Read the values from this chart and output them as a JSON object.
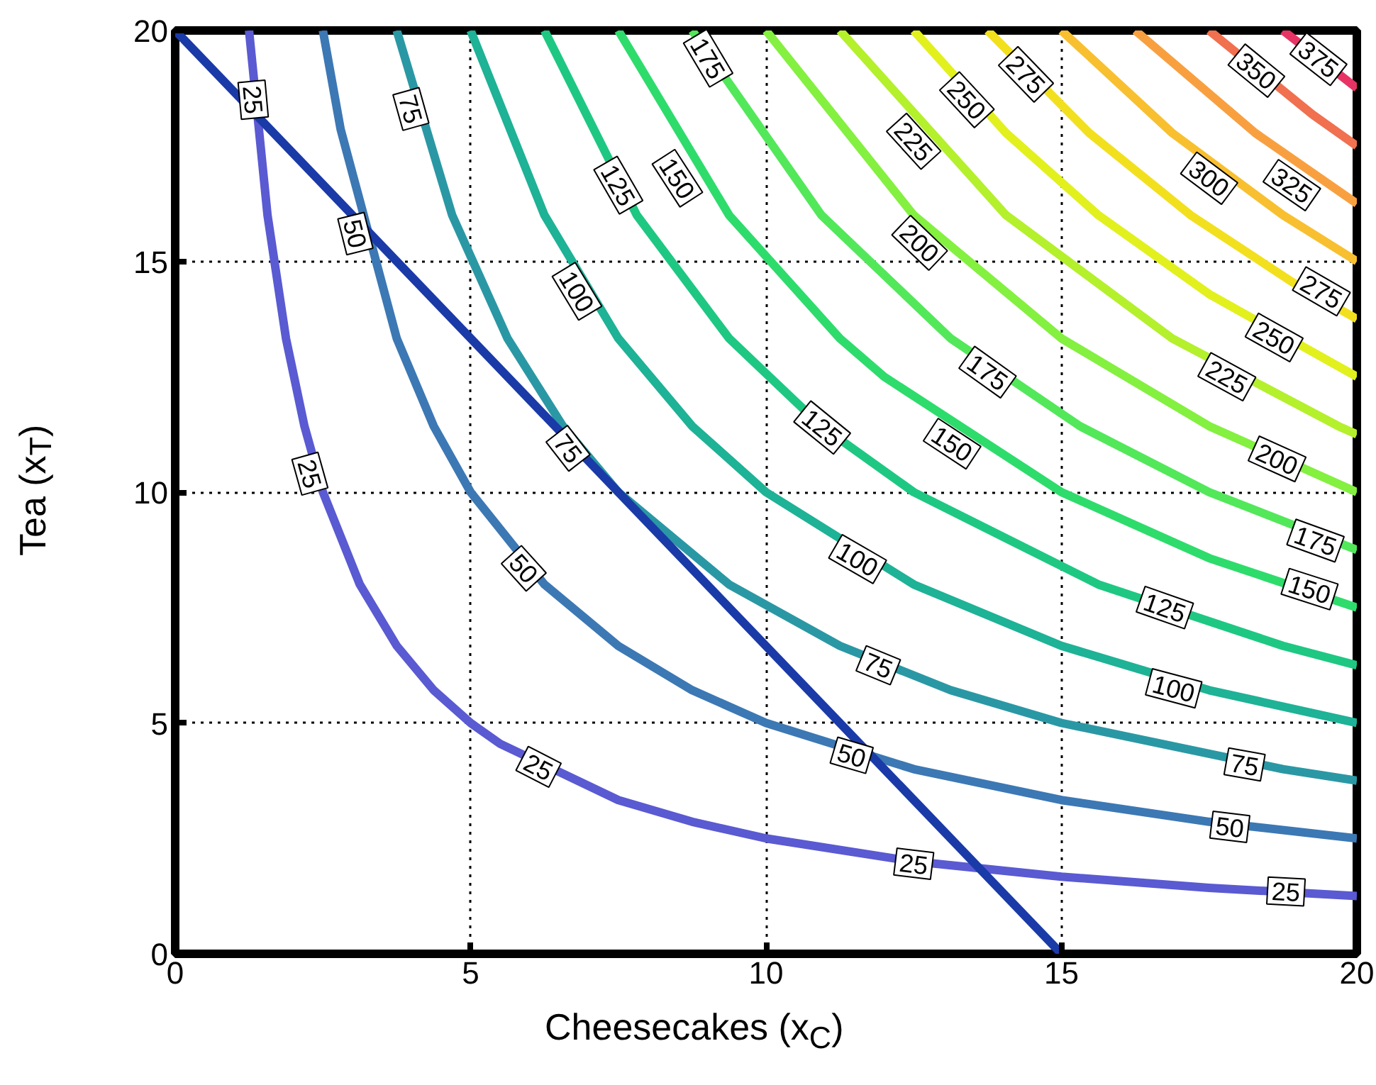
{
  "chart_data": {
    "type": "line",
    "xlabel": "Cheesecakes (x$_{C}$)",
    "ylabel": "Tea (x$_{T}$)",
    "xlim": [
      0,
      20
    ],
    "ylim": [
      0,
      20
    ],
    "xticks": [
      0,
      5,
      10,
      15,
      20
    ],
    "yticks": [
      0,
      5,
      10,
      15,
      20
    ],
    "grid": true,
    "series": [
      {
        "color": "#5a5ad2",
        "x": [
          1.25,
          1.5625,
          1.875,
          2.1875,
          2.5,
          3.125,
          3.75,
          4.375,
          5,
          5.5,
          7.5,
          8.75,
          10,
          12.5,
          15,
          17.5,
          20
        ],
        "values": [
          20,
          16,
          13.33,
          11.43,
          10,
          8,
          6.67,
          5.71,
          5,
          4.55,
          3.33,
          2.86,
          2.5,
          2,
          1.67,
          1.43,
          1.25
        ]
      },
      {
        "color": "#3c78b4",
        "x": [
          2.5,
          2.8,
          3.75,
          4.375,
          5,
          6.25,
          7.5,
          8.75,
          10,
          12.5,
          15,
          17.5,
          20
        ],
        "values": [
          20,
          17.86,
          13.33,
          11.43,
          10,
          8,
          6.67,
          5.71,
          5,
          4,
          3.33,
          2.86,
          2.5
        ]
      },
      {
        "color": "#2a98a4",
        "x": [
          3.75,
          4.6875,
          5.625,
          6.5625,
          7.5,
          9.375,
          11.25,
          13.125,
          15,
          18.75,
          20
        ],
        "values": [
          20,
          16,
          13.33,
          11.43,
          10,
          8,
          6.67,
          5.71,
          5,
          4,
          3.75
        ]
      },
      {
        "color": "#1eb296",
        "x": [
          5,
          6.25,
          7.5,
          8.75,
          10,
          12.5,
          15,
          17.5,
          20
        ],
        "values": [
          20,
          16,
          13.33,
          11.43,
          10,
          8,
          6.67,
          5.71,
          5
        ]
      },
      {
        "color": "#1ec882",
        "x": [
          6.25,
          7.8125,
          9.375,
          10.9375,
          12.5,
          15.625,
          18.75,
          20
        ],
        "values": [
          20,
          16,
          13.33,
          11.43,
          10,
          8,
          6.67,
          6.25
        ]
      },
      {
        "color": "#2edc6c",
        "x": [
          7.5,
          9.375,
          11.25,
          12,
          15,
          17.5,
          20
        ],
        "values": [
          20,
          16,
          13.33,
          12.5,
          10,
          8.57,
          7.5
        ]
      },
      {
        "color": "#52e85a",
        "x": [
          8.75,
          10.9375,
          13.125,
          15.3125,
          17.5,
          20
        ],
        "values": [
          20,
          16,
          13.33,
          11.43,
          10,
          8.75
        ]
      },
      {
        "color": "#84f040",
        "x": [
          10,
          12.5,
          15,
          17.5,
          20
        ],
        "values": [
          20,
          16,
          13.33,
          11.43,
          10
        ]
      },
      {
        "color": "#b4f02c",
        "x": [
          11.25,
          14.0625,
          16.875,
          19.6875,
          20
        ],
        "values": [
          20,
          16,
          13.33,
          11.43,
          11.25
        ]
      },
      {
        "color": "#e2f01e",
        "x": [
          12.5,
          14.0625,
          15.625,
          17.5,
          20
        ],
        "values": [
          20,
          17.78,
          16,
          14.29,
          12.5
        ]
      },
      {
        "color": "#f2e01e",
        "x": [
          13.75,
          15.47,
          17.1875,
          18.906,
          20
        ],
        "values": [
          20,
          17.78,
          16,
          14.55,
          13.75
        ]
      },
      {
        "color": "#f8c030",
        "x": [
          15,
          16.875,
          18.75,
          20
        ],
        "values": [
          20,
          17.78,
          16,
          15
        ]
      },
      {
        "color": "#f8a040",
        "x": [
          16.25,
          18.28,
          20
        ],
        "values": [
          20,
          17.78,
          16.25
        ]
      },
      {
        "color": "#f07050",
        "x": [
          17.5,
          19.25,
          20
        ],
        "values": [
          20,
          18.18,
          17.5
        ]
      },
      {
        "color": "#e83464",
        "x": [
          18.75,
          20
        ],
        "values": [
          20,
          18.75
        ]
      },
      {
        "color": "#1a3aa8",
        "x": [
          0,
          15
        ],
        "values": [
          20,
          0
        ]
      }
    ],
    "annotations": [
      {
        "text": "25",
        "x": 1.32,
        "y": 18.5
      },
      {
        "text": "75",
        "x": 3.99,
        "y": 18.3
      },
      {
        "text": "175",
        "x": 9.02,
        "y": 19.4
      },
      {
        "text": "125",
        "x": 7.5,
        "y": 16.65
      },
      {
        "text": "150",
        "x": 8.5,
        "y": 16.8
      },
      {
        "text": "275",
        "x": 14.4,
        "y": 19.05
      },
      {
        "text": "250",
        "x": 13.4,
        "y": 18.5
      },
      {
        "text": "225",
        "x": 12.5,
        "y": 17.6
      },
      {
        "text": "350",
        "x": 18.3,
        "y": 19.13
      },
      {
        "text": "375",
        "x": 19.35,
        "y": 19.38
      },
      {
        "text": "300",
        "x": 17.5,
        "y": 16.8
      },
      {
        "text": "325",
        "x": 18.9,
        "y": 16.65
      },
      {
        "text": "50",
        "x": 3.05,
        "y": 15.6
      },
      {
        "text": "100",
        "x": 6.8,
        "y": 14.35
      },
      {
        "text": "200",
        "x": 12.6,
        "y": 15.4
      },
      {
        "text": "275",
        "x": 19.4,
        "y": 14.35
      },
      {
        "text": "175",
        "x": 13.75,
        "y": 12.6
      },
      {
        "text": "250",
        "x": 18.6,
        "y": 13.35
      },
      {
        "text": "225",
        "x": 17.8,
        "y": 12.5
      },
      {
        "text": "125",
        "x": 10.95,
        "y": 11.4
      },
      {
        "text": "150",
        "x": 13.15,
        "y": 11.05
      },
      {
        "text": "200",
        "x": 18.65,
        "y": 10.72
      },
      {
        "text": "75",
        "x": 6.65,
        "y": 10.95
      },
      {
        "text": "25",
        "x": 2.28,
        "y": 10.4
      },
      {
        "text": "175",
        "x": 19.3,
        "y": 8.95
      },
      {
        "text": "150",
        "x": 19.2,
        "y": 7.9
      },
      {
        "text": "100",
        "x": 11.55,
        "y": 8.55
      },
      {
        "text": "50",
        "x": 5.9,
        "y": 8.35
      },
      {
        "text": "125",
        "x": 16.75,
        "y": 7.5
      },
      {
        "text": "75",
        "x": 11.9,
        "y": 6.25
      },
      {
        "text": "100",
        "x": 16.9,
        "y": 5.75
      },
      {
        "text": "50",
        "x": 11.45,
        "y": 4.3
      },
      {
        "text": "75",
        "x": 18.1,
        "y": 4.1
      },
      {
        "text": "25",
        "x": 6.15,
        "y": 4.05
      },
      {
        "text": "50",
        "x": 17.85,
        "y": 2.75
      },
      {
        "text": "25",
        "x": 12.5,
        "y": 1.95
      },
      {
        "text": "25",
        "x": 18.8,
        "y": 1.35
      }
    ]
  }
}
